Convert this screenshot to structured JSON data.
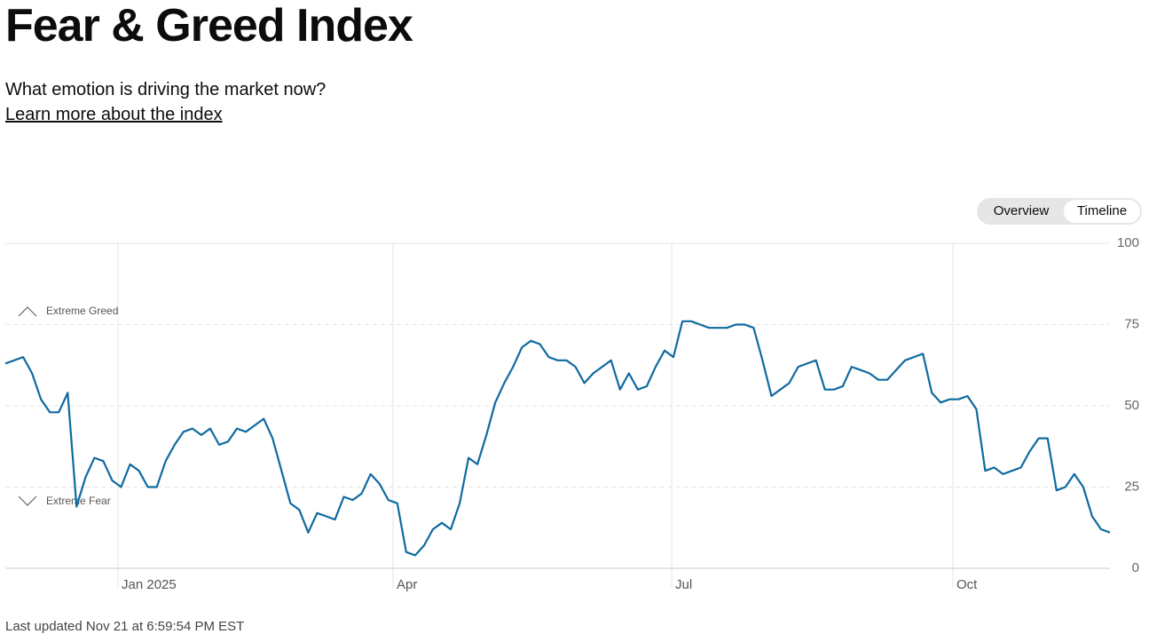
{
  "header": {
    "title": "Fear & Greed Index",
    "subtitle": "What emotion is driving the market now?",
    "link": "Learn more about the index"
  },
  "toggle": {
    "options": [
      "Overview",
      "Timeline"
    ]
  },
  "chart_data": {
    "type": "line",
    "values": [
      63,
      64,
      65,
      60,
      52,
      48,
      48,
      54,
      19,
      28,
      34,
      33,
      27,
      25,
      32,
      30,
      25,
      25,
      33,
      38,
      42,
      43,
      41,
      43,
      38,
      39,
      43,
      42,
      44,
      46,
      40,
      30,
      20,
      18,
      11,
      17,
      16,
      15,
      22,
      21,
      23,
      29,
      26,
      21,
      20,
      5,
      4,
      7,
      12,
      14,
      12,
      20,
      34,
      32,
      41,
      51,
      57,
      62,
      68,
      70,
      69,
      65,
      64,
      64,
      62,
      57,
      60,
      62,
      64,
      55,
      60,
      55,
      56,
      62,
      67,
      65,
      76,
      76,
      75,
      74,
      74,
      74,
      75,
      75,
      74,
      64,
      53,
      55,
      57,
      62,
      63,
      64,
      55,
      55,
      56,
      62,
      61,
      60,
      58,
      58,
      61,
      64,
      65,
      66,
      54,
      51,
      52,
      52,
      53,
      49,
      30,
      31,
      29,
      30,
      31,
      36,
      40,
      40,
      24,
      25,
      29,
      25,
      16,
      12,
      11
    ],
    "color": "#0f6aa0",
    "xlim": [
      0,
      124
    ],
    "xticks": [
      {
        "value": 12.65,
        "label": "Jan 2025"
      },
      {
        "value": 43.53,
        "label": "Apr"
      },
      {
        "value": 74.8,
        "label": "Jul"
      },
      {
        "value": 106.37,
        "label": "Oct"
      }
    ],
    "ylim": [
      0,
      100
    ],
    "yticks": [
      0,
      25,
      50,
      75,
      100
    ],
    "grid": true,
    "annotations": [
      "Extreme Greed",
      "Extreme Fear"
    ]
  },
  "footer": {
    "updated": "Last updated Nov 21 at 6:59:54 PM EST"
  }
}
